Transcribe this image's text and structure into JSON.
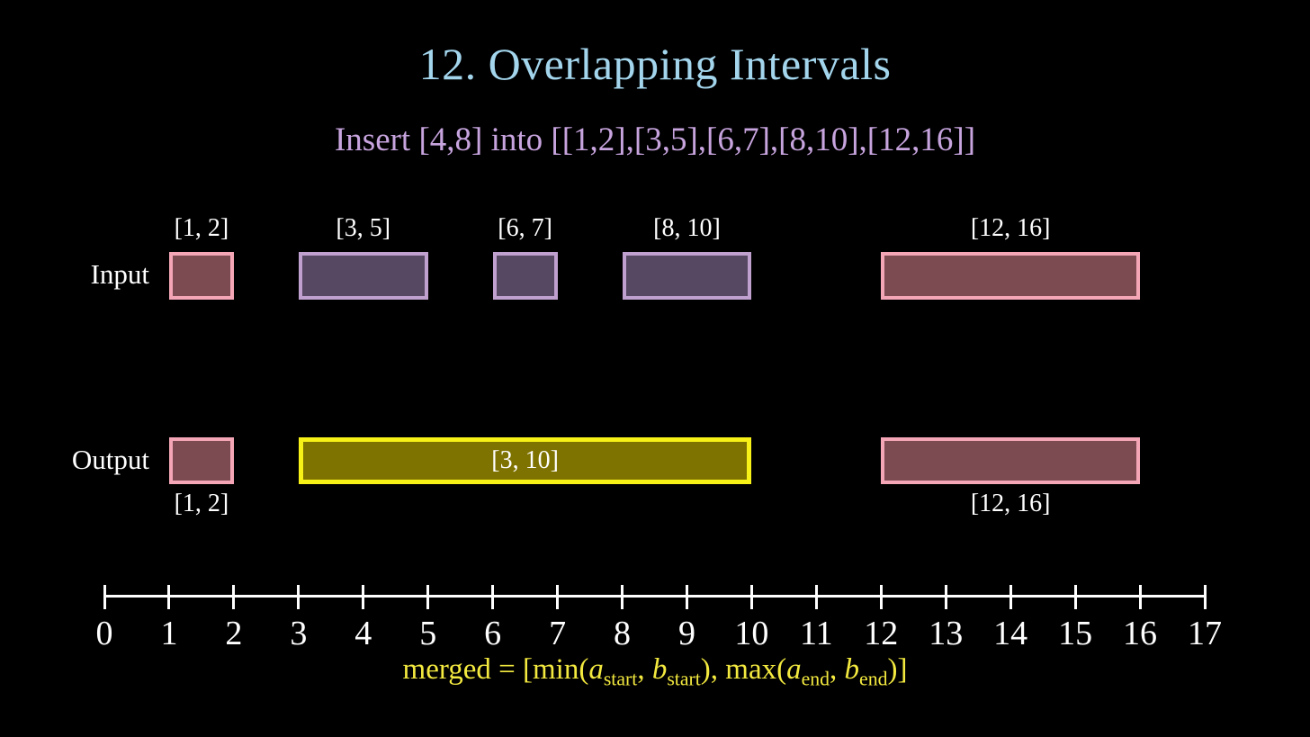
{
  "title": "12. Overlapping Intervals",
  "subtitle": "Insert [4,8] into [[1,2],[3,5],[6,7],[8,10],[12,16]]",
  "colors": {
    "title": "#a3d5ec",
    "subtitle": "#c7a4de",
    "formula": "#f3e93f",
    "axis": "#ffffff",
    "pink_border": "#f4a6b6",
    "pink_fill": "#7c4a51",
    "purple_border": "#bfa0ce",
    "purple_fill": "#564862",
    "yellow_border": "#f7f117",
    "yellow_fill": "#7e7200"
  },
  "input_row": {
    "label": "Input",
    "intervals": [
      {
        "label": "[1, 2]",
        "start": 1,
        "end": 2,
        "style": "pink",
        "label_pos": "above"
      },
      {
        "label": "[3, 5]",
        "start": 3,
        "end": 5,
        "style": "purple",
        "label_pos": "above"
      },
      {
        "label": "[6, 7]",
        "start": 6,
        "end": 7,
        "style": "purple",
        "label_pos": "above"
      },
      {
        "label": "[8, 10]",
        "start": 8,
        "end": 10,
        "style": "purple",
        "label_pos": "above"
      },
      {
        "label": "[12, 16]",
        "start": 12,
        "end": 16,
        "style": "pink",
        "label_pos": "above"
      }
    ]
  },
  "output_row": {
    "label": "Output",
    "intervals": [
      {
        "label": "[1, 2]",
        "start": 1,
        "end": 2,
        "style": "pink",
        "label_pos": "below"
      },
      {
        "label": "[3, 10]",
        "start": 3,
        "end": 10,
        "style": "yellow",
        "label_pos": "inside"
      },
      {
        "label": "[12, 16]",
        "start": 12,
        "end": 16,
        "style": "pink",
        "label_pos": "below"
      }
    ]
  },
  "number_line": {
    "min": 0,
    "max": 17,
    "ticks": [
      "0",
      "1",
      "2",
      "3",
      "4",
      "5",
      "6",
      "7",
      "8",
      "9",
      "10",
      "11",
      "12",
      "13",
      "14",
      "15",
      "16",
      "17"
    ]
  },
  "formula": {
    "plain": "merged = [min(a_start, b_start), max(a_end, b_end)]",
    "parts": [
      {
        "text": "merged = [min(",
        "style": "rm"
      },
      {
        "text": "a",
        "style": "it"
      },
      {
        "text": "start",
        "style": "sub"
      },
      {
        "text": ", ",
        "style": "rm"
      },
      {
        "text": "b",
        "style": "it"
      },
      {
        "text": "start",
        "style": "sub"
      },
      {
        "text": "), max(",
        "style": "rm"
      },
      {
        "text": "a",
        "style": "it"
      },
      {
        "text": "end",
        "style": "sub"
      },
      {
        "text": ", ",
        "style": "rm"
      },
      {
        "text": "b",
        "style": "it"
      },
      {
        "text": "end",
        "style": "sub"
      },
      {
        "text": ")]",
        "style": "rm"
      }
    ]
  }
}
